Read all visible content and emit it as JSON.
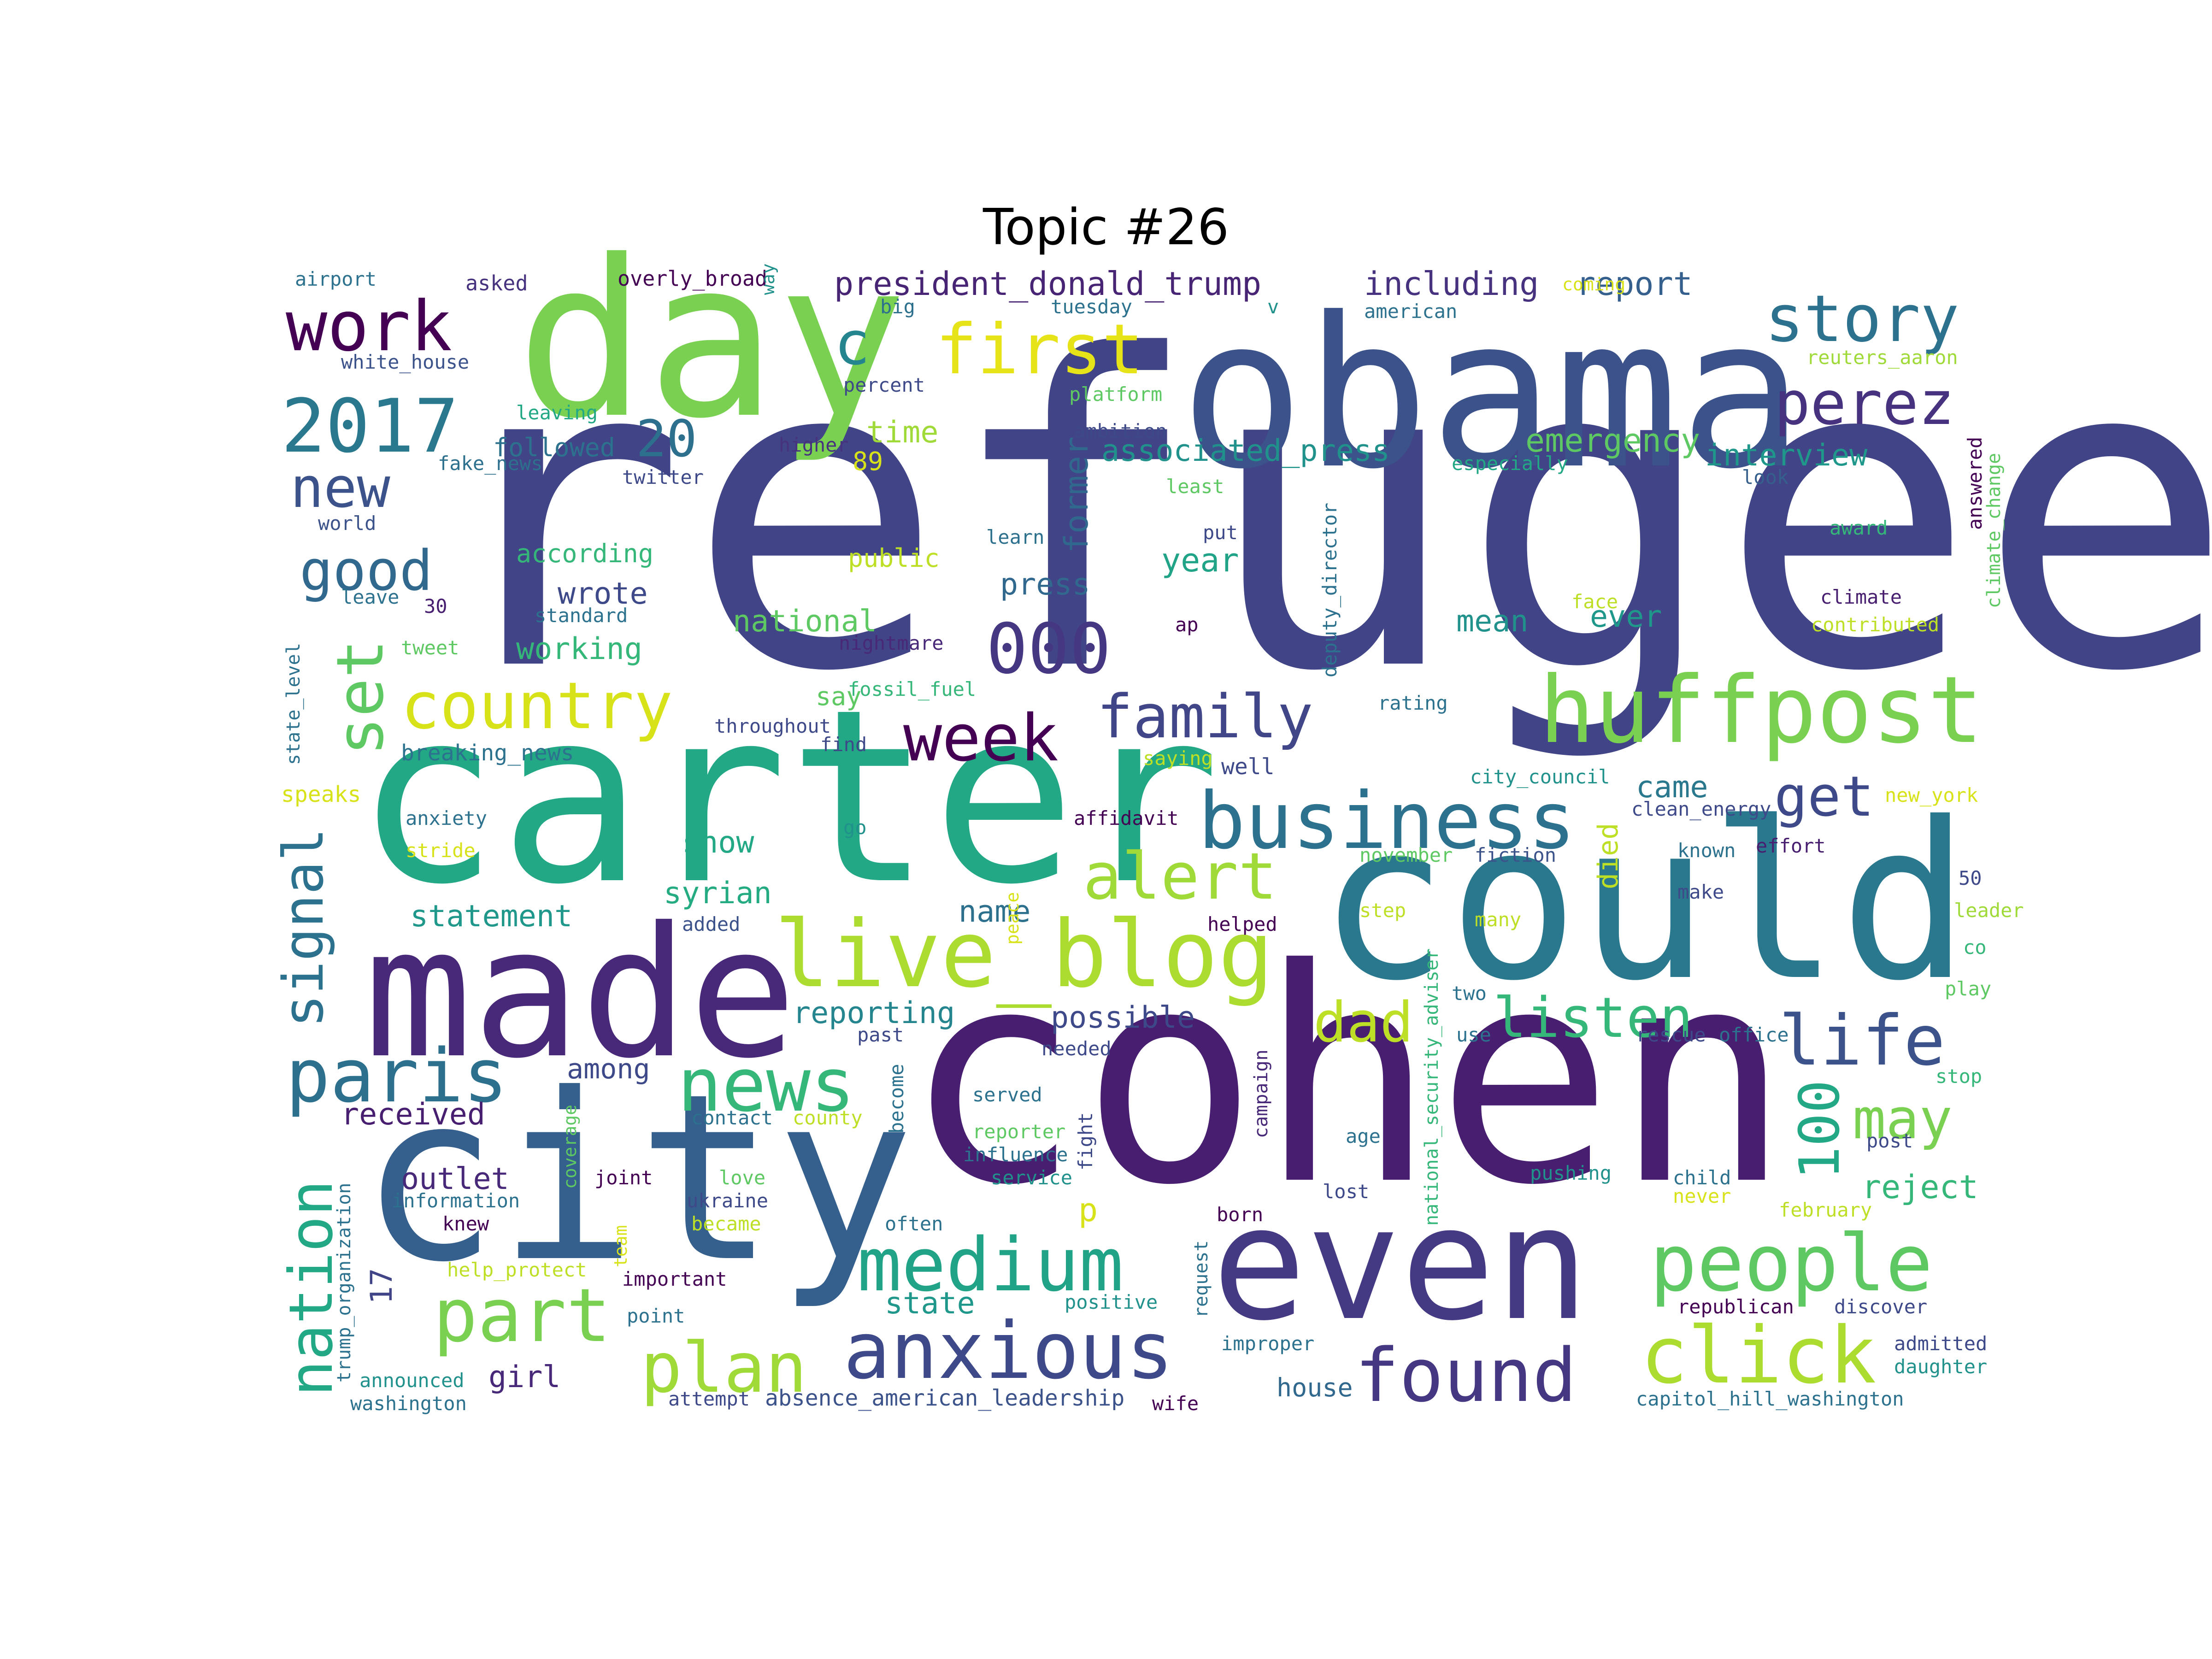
{
  "title": "Topic #26",
  "palette": "viridis",
  "words": [
    {
      "text": "refugee",
      "color": "#414487"
    },
    {
      "text": "cohen",
      "color": "#481f70"
    },
    {
      "text": "carter",
      "color": "#22a884"
    },
    {
      "text": "obama",
      "color": "#3b528b"
    },
    {
      "text": "city",
      "color": "#355f8d"
    },
    {
      "text": "could",
      "color": "#2a788e"
    },
    {
      "text": "day",
      "color": "#7ad151"
    },
    {
      "text": "made",
      "color": "#482878"
    },
    {
      "text": "even",
      "color": "#443983"
    },
    {
      "text": "huffpost",
      "color": "#7ad151"
    },
    {
      "text": "live_blog",
      "color": "#addc30"
    },
    {
      "text": "business",
      "color": "#2c728e"
    },
    {
      "text": "people",
      "color": "#5ec962"
    },
    {
      "text": "click",
      "color": "#addc30"
    },
    {
      "text": "anxious",
      "color": "#3e4989"
    },
    {
      "text": "found",
      "color": "#453781"
    },
    {
      "text": "medium",
      "color": "#20a386"
    },
    {
      "text": "news",
      "color": "#35b779"
    },
    {
      "text": "paris",
      "color": "#2d708e"
    },
    {
      "text": "plan",
      "color": "#a0da39"
    },
    {
      "text": "part",
      "color": "#7ad151"
    },
    {
      "text": "family",
      "color": "#404688"
    },
    {
      "text": "country",
      "color": "#d8e219"
    },
    {
      "text": "week",
      "color": "#440154"
    },
    {
      "text": "work",
      "color": "#440154"
    },
    {
      "text": "2017",
      "color": "#2a788e"
    },
    {
      "text": "first",
      "color": "#e6e419"
    },
    {
      "text": "story",
      "color": "#2c728e"
    },
    {
      "text": "perez",
      "color": "#46327e"
    },
    {
      "text": "000",
      "color": "#453781"
    },
    {
      "text": "alert",
      "color": "#a0da39"
    },
    {
      "text": "life",
      "color": "#3b528b"
    },
    {
      "text": "listen",
      "color": "#35b779"
    },
    {
      "text": "may",
      "color": "#7ad151"
    },
    {
      "text": "get",
      "color": "#3e4989"
    },
    {
      "text": "dad",
      "color": "#bddf26"
    },
    {
      "text": "set",
      "color": "#5ec962"
    },
    {
      "text": "nation",
      "color": "#22a884"
    },
    {
      "text": "signal",
      "color": "#2c728e"
    },
    {
      "text": "new",
      "color": "#3b528b"
    },
    {
      "text": "good",
      "color": "#31688e"
    },
    {
      "text": "20",
      "color": "#2d708e"
    },
    {
      "text": "c",
      "color": "#25858e"
    },
    {
      "text": "100",
      "color": "#22a884"
    },
    {
      "text": "president_donald_trump",
      "color": "#482475"
    },
    {
      "text": "including",
      "color": "#46327e"
    },
    {
      "text": "report",
      "color": "#355f8d"
    },
    {
      "text": "associated_press",
      "color": "#21918c"
    },
    {
      "text": "emergency",
      "color": "#5ec962"
    },
    {
      "text": "interview",
      "color": "#1f988b"
    },
    {
      "text": "time",
      "color": "#a0da39"
    },
    {
      "text": "89",
      "color": "#d8e219"
    },
    {
      "text": "former",
      "color": "#31688e"
    },
    {
      "text": "press",
      "color": "#31688e"
    },
    {
      "text": "year",
      "color": "#20a386"
    },
    {
      "text": "national",
      "color": "#5ec962"
    },
    {
      "text": "according",
      "color": "#35b779"
    },
    {
      "text": "public",
      "color": "#bddf26"
    },
    {
      "text": "wrote",
      "color": "#3e4989"
    },
    {
      "text": "working",
      "color": "#35b779"
    },
    {
      "text": "mean",
      "color": "#21918c"
    },
    {
      "text": "ever",
      "color": "#1f988b"
    },
    {
      "text": "followed",
      "color": "#2c728e"
    },
    {
      "text": "say",
      "color": "#5ec962"
    },
    {
      "text": "show",
      "color": "#22a884"
    },
    {
      "text": "syrian",
      "color": "#25ab82"
    },
    {
      "text": "statement",
      "color": "#1f988b"
    },
    {
      "text": "name",
      "color": "#2d708e"
    },
    {
      "text": "came",
      "color": "#2a788e"
    },
    {
      "text": "died",
      "color": "#bddf26"
    },
    {
      "text": "reporting",
      "color": "#25858e"
    },
    {
      "text": "possible",
      "color": "#3e4989"
    },
    {
      "text": "among",
      "color": "#3e4989"
    },
    {
      "text": "received",
      "color": "#481f70"
    },
    {
      "text": "outlet",
      "color": "#482878"
    },
    {
      "text": "reject",
      "color": "#35b779"
    },
    {
      "text": "state",
      "color": "#1f988b"
    },
    {
      "text": "girl",
      "color": "#482878"
    },
    {
      "text": "17",
      "color": "#414487"
    },
    {
      "text": "p",
      "color": "#d8e219"
    },
    {
      "text": "house",
      "color": "#31688e"
    },
    {
      "text": "absence_american_leadership",
      "color": "#3b528b"
    },
    {
      "text": "overly_broad",
      "color": "#440154"
    },
    {
      "text": "airport",
      "color": "#2c728e"
    },
    {
      "text": "asked",
      "color": "#46327e"
    },
    {
      "text": "way",
      "color": "#21918c"
    },
    {
      "text": "big",
      "color": "#2d708e"
    },
    {
      "text": "tuesday",
      "color": "#2c728e"
    },
    {
      "text": "v",
      "color": "#21918c"
    },
    {
      "text": "american",
      "color": "#2c728e"
    },
    {
      "text": "coming",
      "color": "#d8e219"
    },
    {
      "text": "white_house",
      "color": "#3b528b"
    },
    {
      "text": "percent",
      "color": "#3e4989"
    },
    {
      "text": "platform",
      "color": "#5ec962"
    },
    {
      "text": "reuters_aaron",
      "color": "#a0da39"
    },
    {
      "text": "leaving",
      "color": "#22a884"
    },
    {
      "text": "higher",
      "color": "#46327e"
    },
    {
      "text": "ambition",
      "color": "#3e4989"
    },
    {
      "text": "fake_news",
      "color": "#2d708e"
    },
    {
      "text": "twitter",
      "color": "#3e4989"
    },
    {
      "text": "especially",
      "color": "#22a884"
    },
    {
      "text": "least",
      "color": "#5ec962"
    },
    {
      "text": "look",
      "color": "#355f8d"
    },
    {
      "text": "answered",
      "color": "#440154"
    },
    {
      "text": "climate_change",
      "color": "#5ec962"
    },
    {
      "text": "world",
      "color": "#3b528b"
    },
    {
      "text": "learn",
      "color": "#2d708e"
    },
    {
      "text": "put",
      "color": "#3e4989"
    },
    {
      "text": "deputy_director",
      "color": "#2c728e"
    },
    {
      "text": "award",
      "color": "#35b779"
    },
    {
      "text": "leave",
      "color": "#2c728e"
    },
    {
      "text": "30",
      "color": "#481f70"
    },
    {
      "text": "standard",
      "color": "#2c728e"
    },
    {
      "text": "ap",
      "color": "#440154"
    },
    {
      "text": "face",
      "color": "#bddf26"
    },
    {
      "text": "climate",
      "color": "#481f70"
    },
    {
      "text": "contributed",
      "color": "#bddf26"
    },
    {
      "text": "tweet",
      "color": "#5ec962"
    },
    {
      "text": "nightmare",
      "color": "#482878"
    },
    {
      "text": "state_level",
      "color": "#2c728e"
    },
    {
      "text": "fossil_fuel",
      "color": "#35b779"
    },
    {
      "text": "throughout",
      "color": "#3e4989"
    },
    {
      "text": "rating",
      "color": "#2c728e"
    },
    {
      "text": "find",
      "color": "#3e4989"
    },
    {
      "text": "breaking_news",
      "color": "#2c728e"
    },
    {
      "text": "saying",
      "color": "#bddf26"
    },
    {
      "text": "well",
      "color": "#3e4989"
    },
    {
      "text": "speaks",
      "color": "#d8e219"
    },
    {
      "text": "city_council",
      "color": "#21918c"
    },
    {
      "text": "new_york",
      "color": "#d8e219"
    },
    {
      "text": "anxiety",
      "color": "#2c728e"
    },
    {
      "text": "affidavit",
      "color": "#440154"
    },
    {
      "text": "clean_energy",
      "color": "#3e4989"
    },
    {
      "text": "stride",
      "color": "#d8e219"
    },
    {
      "text": "go",
      "color": "#21918c"
    },
    {
      "text": "november",
      "color": "#5ec962"
    },
    {
      "text": "fiction",
      "color": "#3b528b"
    },
    {
      "text": "known",
      "color": "#2c728e"
    },
    {
      "text": "effort",
      "color": "#481f70"
    },
    {
      "text": "50",
      "color": "#3e4989"
    },
    {
      "text": "leader",
      "color": "#a0da39"
    },
    {
      "text": "added",
      "color": "#3b528b"
    },
    {
      "text": "peace",
      "color": "#d8e219"
    },
    {
      "text": "helped",
      "color": "#440154"
    },
    {
      "text": "step",
      "color": "#bddf26"
    },
    {
      "text": "many",
      "color": "#bddf26"
    },
    {
      "text": "make",
      "color": "#3e4989"
    },
    {
      "text": "co",
      "color": "#35b779"
    },
    {
      "text": "play",
      "color": "#5ec962"
    },
    {
      "text": "national_security_adviser",
      "color": "#35b779"
    },
    {
      "text": "two",
      "color": "#2c728e"
    },
    {
      "text": "past",
      "color": "#3e4989"
    },
    {
      "text": "needed",
      "color": "#3e4989"
    },
    {
      "text": "use",
      "color": "#2c728e"
    },
    {
      "text": "rescue",
      "color": "#3e4989"
    },
    {
      "text": "office",
      "color": "#2c728e"
    },
    {
      "text": "served",
      "color": "#2c728e"
    },
    {
      "text": "campaign",
      "color": "#482878"
    },
    {
      "text": "coverage",
      "color": "#5ec962"
    },
    {
      "text": "contact",
      "color": "#2c728e"
    },
    {
      "text": "county",
      "color": "#bddf26"
    },
    {
      "text": "become",
      "color": "#2c728e"
    },
    {
      "text": "reporter",
      "color": "#5ec962"
    },
    {
      "text": "influence",
      "color": "#2c728e"
    },
    {
      "text": "service",
      "color": "#21918c"
    },
    {
      "text": "age",
      "color": "#2c728e"
    },
    {
      "text": "fight",
      "color": "#3e4989"
    },
    {
      "text": "stop",
      "color": "#35b779"
    },
    {
      "text": "post",
      "color": "#3e4989"
    },
    {
      "text": "joint",
      "color": "#440154"
    },
    {
      "text": "love",
      "color": "#5ec962"
    },
    {
      "text": "pushing",
      "color": "#21918c"
    },
    {
      "text": "child",
      "color": "#2c728e"
    },
    {
      "text": "lost",
      "color": "#3e4989"
    },
    {
      "text": "information",
      "color": "#2c728e"
    },
    {
      "text": "ukraine",
      "color": "#3e4989"
    },
    {
      "text": "never",
      "color": "#d8e219"
    },
    {
      "text": "knew",
      "color": "#440154"
    },
    {
      "text": "team",
      "color": "#d8e219"
    },
    {
      "text": "became",
      "color": "#bddf26"
    },
    {
      "text": "often",
      "color": "#2c728e"
    },
    {
      "text": "born",
      "color": "#440154"
    },
    {
      "text": "february",
      "color": "#bddf26"
    },
    {
      "text": "trump_organization",
      "color": "#2c728e"
    },
    {
      "text": "help_protect",
      "color": "#bddf26"
    },
    {
      "text": "important",
      "color": "#440154"
    },
    {
      "text": "request",
      "color": "#2c728e"
    },
    {
      "text": "positive",
      "color": "#21918c"
    },
    {
      "text": "republican",
      "color": "#440154"
    },
    {
      "text": "discover",
      "color": "#3e4989"
    },
    {
      "text": "point",
      "color": "#2c728e"
    },
    {
      "text": "improper",
      "color": "#2c728e"
    },
    {
      "text": "admitted",
      "color": "#3e4989"
    },
    {
      "text": "daughter",
      "color": "#21918c"
    },
    {
      "text": "announced",
      "color": "#21918c"
    },
    {
      "text": "washington",
      "color": "#2c728e"
    },
    {
      "text": "attempt",
      "color": "#3e4989"
    },
    {
      "text": "wife",
      "color": "#440154"
    },
    {
      "text": "capitol_hill_washington",
      "color": "#2c728e"
    }
  ]
}
